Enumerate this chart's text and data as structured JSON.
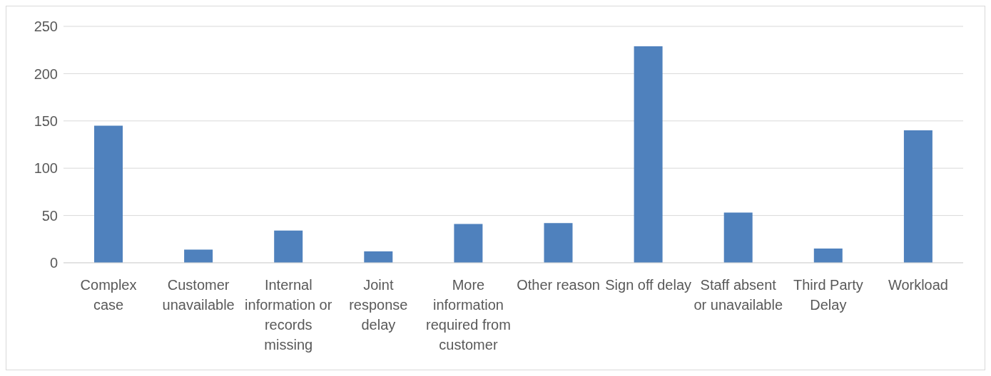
{
  "chart_data": {
    "type": "bar",
    "categories": [
      "Complex case",
      "Customer unavailable",
      "Internal information or records missing",
      "Joint response delay",
      "More information required from customer",
      "Other reason",
      "Sign off delay",
      "Staff absent or unavailable",
      "Third Party Delay",
      "Workload"
    ],
    "values": [
      145,
      14,
      34,
      12,
      41,
      42,
      229,
      53,
      15,
      140
    ],
    "color": "#4f81bd",
    "ylim": [
      0,
      250
    ],
    "yticks": [
      0,
      50,
      100,
      150,
      200,
      250
    ],
    "grid": "y",
    "legend": false
  }
}
